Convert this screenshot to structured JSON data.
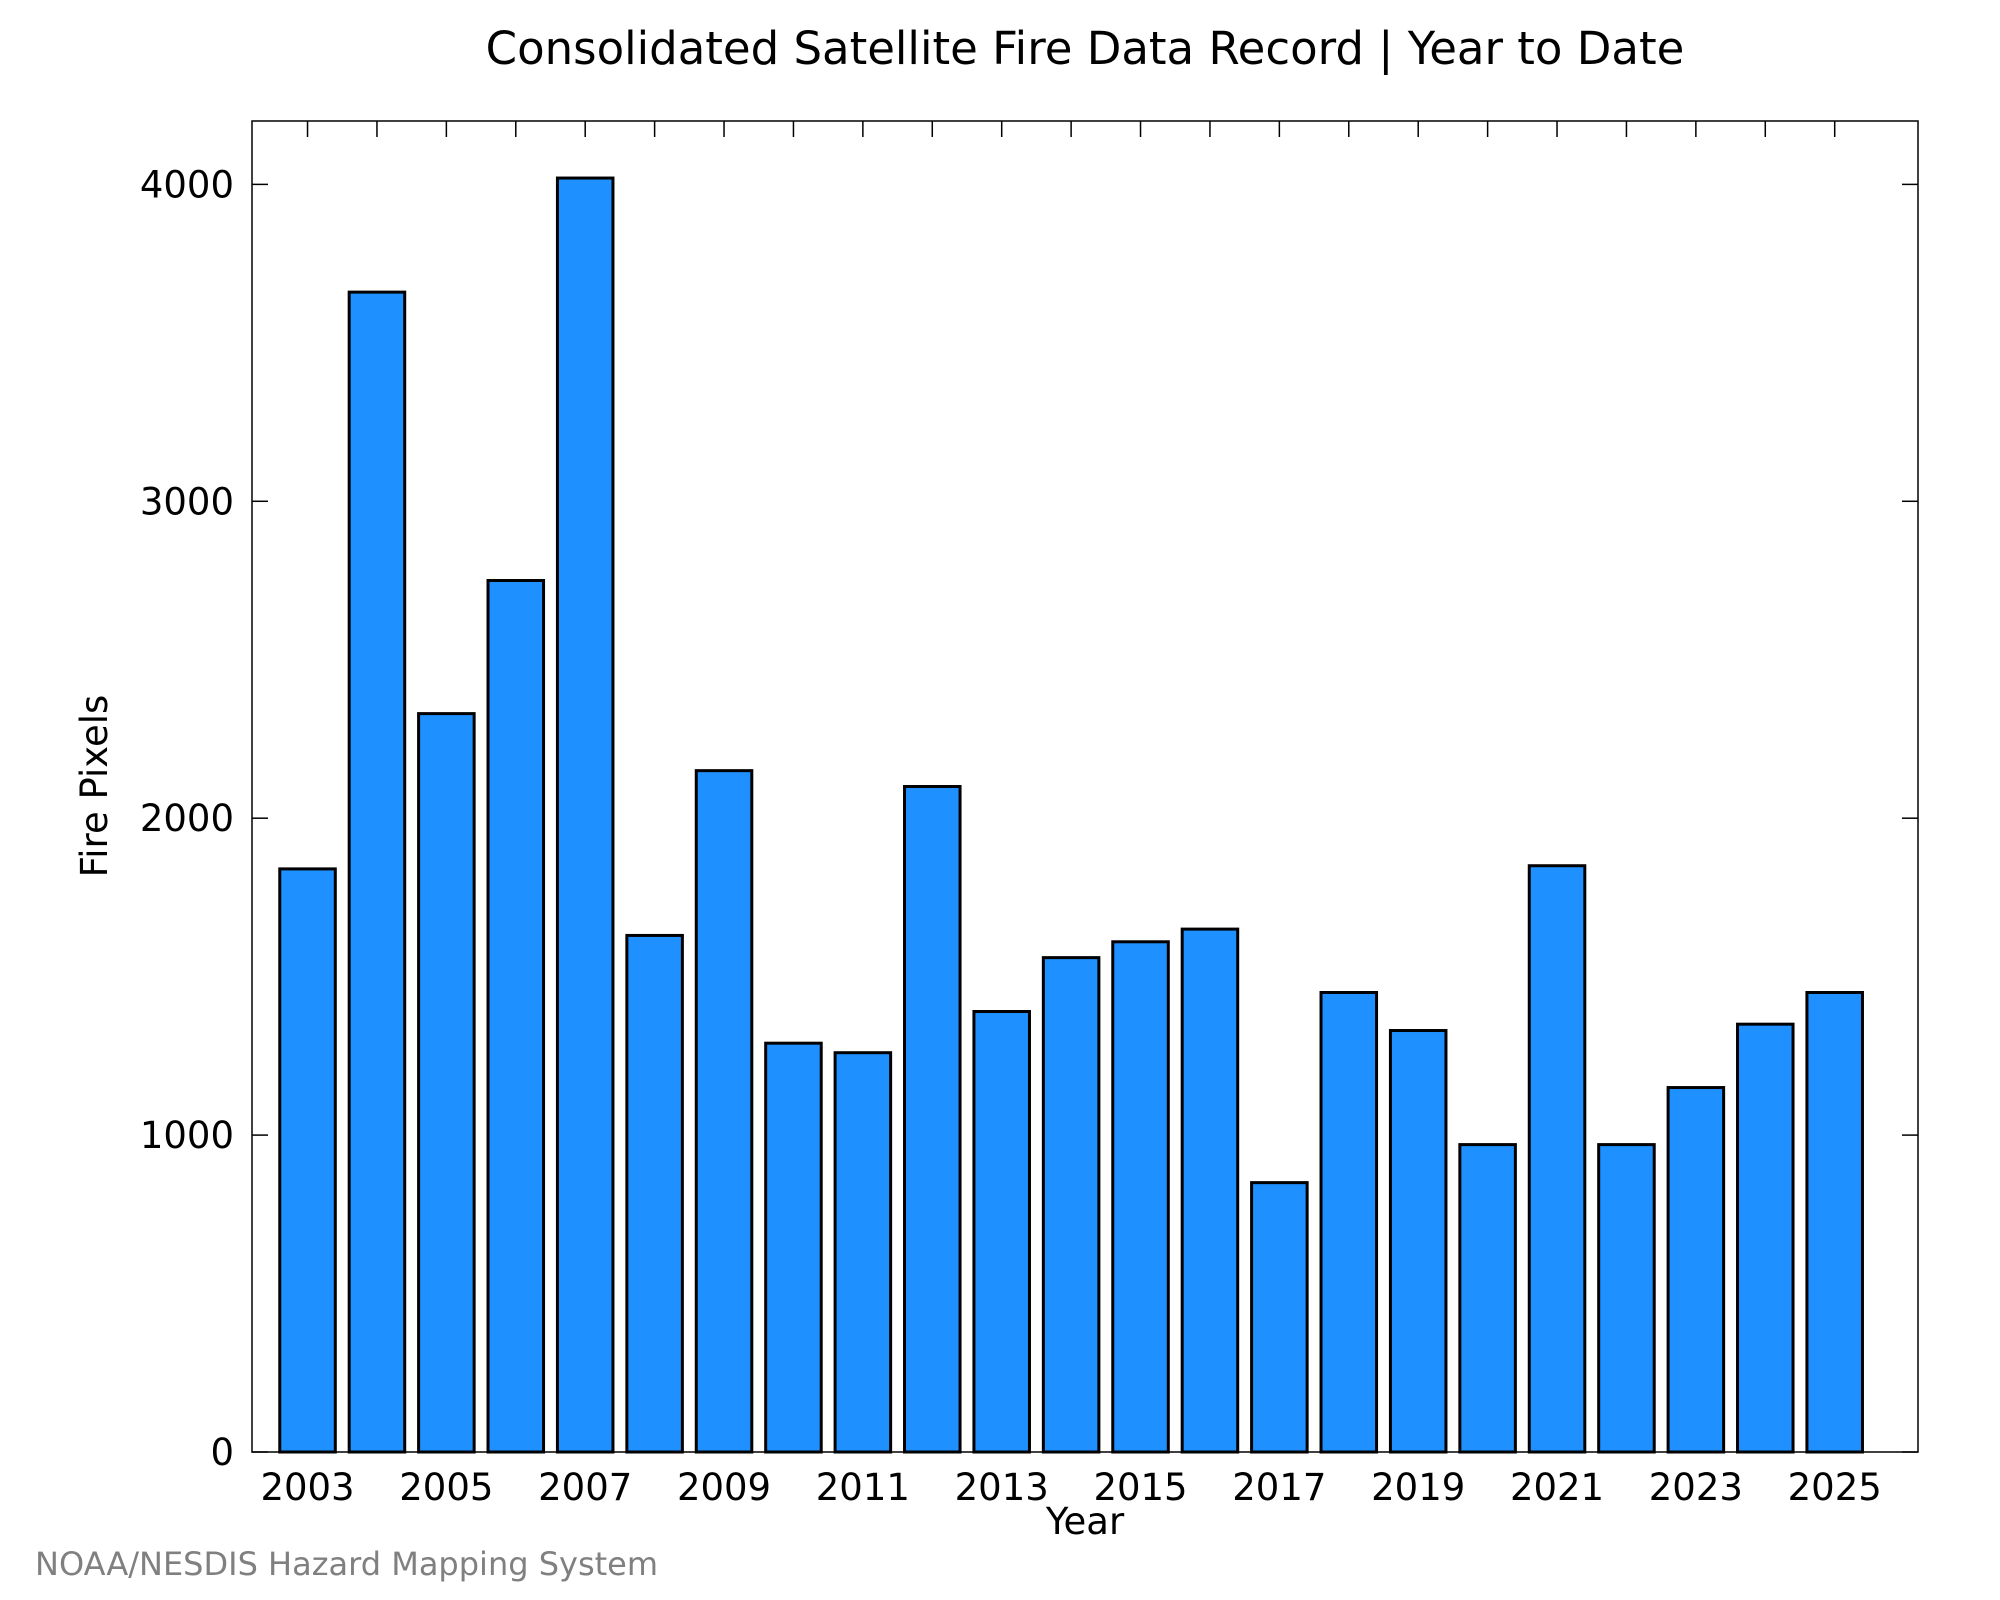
{
  "chart_data": {
    "type": "bar",
    "title": "Consolidated Satellite Fire Data Record | Year to Date",
    "xlabel": "Year",
    "ylabel": "Fire Pixels",
    "categories": [
      2003,
      2004,
      2005,
      2006,
      2007,
      2008,
      2009,
      2010,
      2011,
      2012,
      2013,
      2014,
      2015,
      2016,
      2017,
      2018,
      2019,
      2020,
      2021,
      2022,
      2023,
      2024,
      2025
    ],
    "values": [
      1840,
      3660,
      2330,
      2750,
      4020,
      1630,
      2150,
      1290,
      1260,
      2100,
      1390,
      1560,
      1610,
      1650,
      850,
      1450,
      1330,
      970,
      1850,
      970,
      1150,
      1350,
      1450
    ],
    "x_tick_labels": [
      "2003",
      "2005",
      "2007",
      "2009",
      "2011",
      "2013",
      "2015",
      "2017",
      "2019",
      "2021",
      "2023",
      "2025"
    ],
    "y_ticks": [
      0,
      1000,
      2000,
      3000,
      4000
    ],
    "ylim": [
      0,
      4200
    ],
    "xlim": [
      2002.2,
      2026.2
    ],
    "bar_color": "#1e90ff",
    "grid": false,
    "legend": "none"
  },
  "footer": {
    "credit": "NOAA/NESDIS Hazard Mapping System"
  }
}
